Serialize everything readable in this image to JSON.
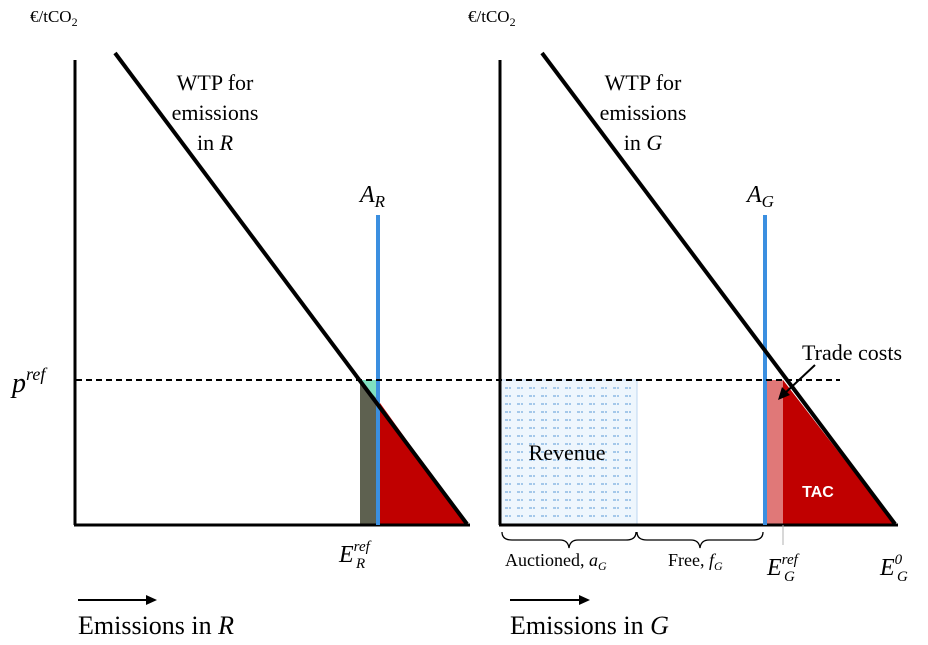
{
  "left_panel": {
    "y_unit": "€/tCO",
    "y_unit_sub": "2",
    "curve_label_lines": [
      "WTP for",
      "emissions"
    ],
    "curve_label_in": "in ",
    "curve_label_region": "R",
    "cap_letter": "A",
    "cap_sub": "R",
    "eref_letter": "E",
    "eref_sup": "ref",
    "eref_sub": "R",
    "x_label": "Emissions in ",
    "x_label_region": "R"
  },
  "right_panel": {
    "y_unit": "€/tCO",
    "y_unit_sub": "2",
    "curve_label_lines": [
      "WTP for",
      "emissions"
    ],
    "curve_label_in": "in ",
    "curve_label_region": "G",
    "cap_letter": "A",
    "cap_sub": "G",
    "revenue_label": "Revenue",
    "tac_label": "TAC",
    "trade_costs_label": "Trade costs",
    "auctioned_label": "Auctioned, ",
    "auctioned_var": "a",
    "auctioned_sub": "G",
    "free_label": "Free, ",
    "free_var": "f",
    "free_sub": "G",
    "eref_letter": "E",
    "eref_sup": "ref",
    "eref_sub": "G",
    "e0_letter": "E",
    "e0_sup": "0",
    "e0_sub": "G",
    "x_label": "Emissions in ",
    "x_label_region": "G"
  },
  "price_label_letter": "p",
  "price_label_sup": "ref",
  "colors": {
    "demand_line": "#000000",
    "cap_line": "#3b8fe0",
    "triangle": "#c00000",
    "trade_costs_bar": "#e07878",
    "left_grey_bar": "#5e6150",
    "left_teal": "#80e0c0",
    "revenue_fill": "#eef6fd",
    "revenue_dash": "#5a9ad8"
  }
}
